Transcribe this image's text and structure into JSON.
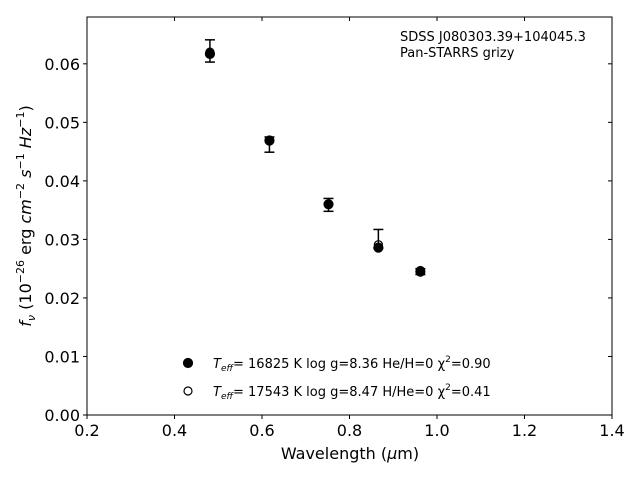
{
  "chart_data": {
    "type": "scatter",
    "annotation": [
      "SDSS J080303.39+104045.3",
      "Pan-STARRS grizy"
    ],
    "xlabel": "Wavelength (μm)",
    "ylabel": "f_ν (10^-26 erg cm^-2 s^-1 Hz^-1)",
    "xlim": [
      0.2,
      1.4
    ],
    "ylim": [
      0.0,
      0.068
    ],
    "xticks": [
      0.2,
      0.4,
      0.6,
      0.8,
      1.0,
      1.2,
      1.4
    ],
    "xtick_labels": [
      "0.2",
      "0.4",
      "0.6",
      "0.8",
      "1.0",
      "1.2",
      "1.4"
    ],
    "yticks": [
      0.0,
      0.01,
      0.02,
      0.03,
      0.04,
      0.05,
      0.06
    ],
    "ytick_labels": [
      "0.00",
      "0.01",
      "0.02",
      "0.03",
      "0.04",
      "0.05",
      "0.06"
    ],
    "grid": false,
    "legend_position": "bottom-center",
    "observed": {
      "x": [
        0.481,
        0.617,
        0.752,
        0.866,
        0.962
      ],
      "y": [
        0.0622,
        0.0462,
        0.0359,
        0.0301,
        0.0245
      ],
      "yerr": [
        0.0019,
        0.0013,
        0.0011,
        0.0016,
        0.0005
      ]
    },
    "series": [
      {
        "name": "T_eff = 16825 K  log g=8.36  He/H=0  χ²=0.90",
        "legend_parts": {
          "t_label": "T",
          "t_sub": "eff",
          "rest": "= 16825 K  log g=8.36  He/H=0  χ",
          "chi_sup": "2",
          "chi_val": "=0.90"
        },
        "marker": "filled-circle",
        "x": [
          0.481,
          0.617,
          0.752,
          0.866,
          0.962
        ],
        "y": [
          0.0617,
          0.0469,
          0.036,
          0.0286,
          0.0245
        ]
      },
      {
        "name": "T_eff = 17543 K  log g=8.47  H/He=0  χ²=0.41",
        "legend_parts": {
          "t_label": "T",
          "t_sub": "eff",
          "rest": "= 17543 K  log g=8.47  H/He=0  χ",
          "chi_sup": "2",
          "chi_val": "=0.41"
        },
        "marker": "open-circle",
        "x": [
          0.481,
          0.617,
          0.752,
          0.866,
          0.962
        ],
        "y": [
          0.062,
          0.0468,
          0.0361,
          0.0291,
          0.0247
        ]
      }
    ],
    "colors": {
      "marker": "#000000",
      "axes": "#000000",
      "background": "#ffffff"
    }
  }
}
